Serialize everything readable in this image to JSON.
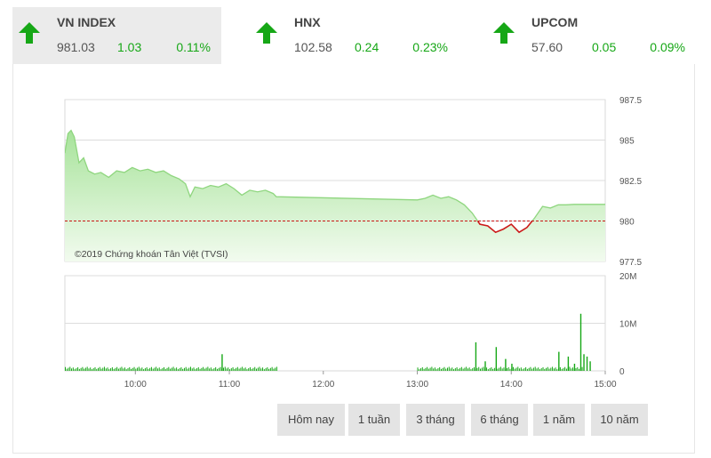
{
  "indices": [
    {
      "name": "VN INDEX",
      "value": "981.03",
      "change": "1.03",
      "percent": "0.11%",
      "trend": "up",
      "active": true
    },
    {
      "name": "HNX",
      "value": "102.58",
      "change": "0.24",
      "percent": "0.23%",
      "trend": "up",
      "active": false
    },
    {
      "name": "UPCOM",
      "value": "57.60",
      "change": "0.05",
      "percent": "0.09%",
      "trend": "up",
      "active": false
    }
  ],
  "colors": {
    "up": "#16a716",
    "down": "#cc1a1a",
    "area_top": "#a7e39a",
    "area_bottom": "#f2fbef",
    "reference": "#c81414"
  },
  "chart_data": {
    "type": "area",
    "copyright": "©2019 Chứng khoán Tân Việt (TVSI)",
    "reference": 980,
    "ylim": [
      977.5,
      987.5
    ],
    "y_ticks": [
      "987.5",
      "985",
      "982.5",
      "980",
      "977.5"
    ],
    "x_ticks": [
      "10:00",
      "11:00",
      "12:00",
      "13:00",
      "14:00",
      "15:00"
    ],
    "price": [
      [
        "09:15",
        984.2
      ],
      [
        "09:17",
        985.4
      ],
      [
        "09:19",
        985.6
      ],
      [
        "09:21",
        985.2
      ],
      [
        "09:24",
        983.6
      ],
      [
        "09:27",
        983.9
      ],
      [
        "09:30",
        983.1
      ],
      [
        "09:34",
        982.9
      ],
      [
        "09:38",
        983.0
      ],
      [
        "09:43",
        982.7
      ],
      [
        "09:48",
        983.1
      ],
      [
        "09:53",
        983.0
      ],
      [
        "09:58",
        983.3
      ],
      [
        "10:03",
        983.1
      ],
      [
        "10:08",
        983.2
      ],
      [
        "10:13",
        983.0
      ],
      [
        "10:18",
        983.1
      ],
      [
        "10:23",
        982.8
      ],
      [
        "10:28",
        982.6
      ],
      [
        "10:32",
        982.3
      ],
      [
        "10:35",
        981.5
      ],
      [
        "10:38",
        982.1
      ],
      [
        "10:43",
        982.0
      ],
      [
        "10:48",
        982.2
      ],
      [
        "10:53",
        982.1
      ],
      [
        "10:58",
        982.3
      ],
      [
        "11:03",
        982.0
      ],
      [
        "11:08",
        981.6
      ],
      [
        "11:13",
        981.9
      ],
      [
        "11:18",
        981.8
      ],
      [
        "11:23",
        981.9
      ],
      [
        "11:28",
        981.7
      ],
      [
        "11:30",
        981.5
      ],
      [
        "13:00",
        981.3
      ],
      [
        "13:05",
        981.4
      ],
      [
        "13:10",
        981.6
      ],
      [
        "13:15",
        981.4
      ],
      [
        "13:20",
        981.5
      ],
      [
        "13:25",
        981.3
      ],
      [
        "13:30",
        981.0
      ],
      [
        "13:35",
        980.5
      ],
      [
        "13:40",
        979.8
      ],
      [
        "13:45",
        979.7
      ],
      [
        "13:50",
        979.3
      ],
      [
        "13:55",
        979.5
      ],
      [
        "14:00",
        979.8
      ],
      [
        "14:05",
        979.3
      ],
      [
        "14:10",
        979.6
      ],
      [
        "14:15",
        980.2
      ],
      [
        "14:20",
        980.9
      ],
      [
        "14:25",
        980.8
      ],
      [
        "14:30",
        981.0
      ],
      [
        "14:35",
        981.0
      ],
      [
        "14:40",
        981.03
      ],
      [
        "14:45",
        981.03
      ],
      [
        "15:00",
        981.03
      ]
    ],
    "volume_ylim": [
      0,
      20
    ],
    "volume_unit": "M",
    "volume_ticks": [
      "20M",
      "10M",
      "0"
    ],
    "volume_spikes": [
      [
        "10:55",
        3.5
      ],
      [
        "13:37",
        6.0
      ],
      [
        "13:43",
        2.0
      ],
      [
        "13:50",
        5.0
      ],
      [
        "13:56",
        2.5
      ],
      [
        "14:00",
        1.5
      ],
      [
        "14:30",
        4.0
      ],
      [
        "14:36",
        3.0
      ],
      [
        "14:40",
        1.5
      ],
      [
        "14:44",
        12.0
      ],
      [
        "14:46",
        3.5
      ],
      [
        "14:48",
        3.0
      ],
      [
        "14:50",
        2.0
      ]
    ]
  },
  "ranges": [
    "Hôm nay",
    "1 tuần",
    "3 tháng",
    "6 tháng",
    "1 năm",
    "10 năm"
  ]
}
